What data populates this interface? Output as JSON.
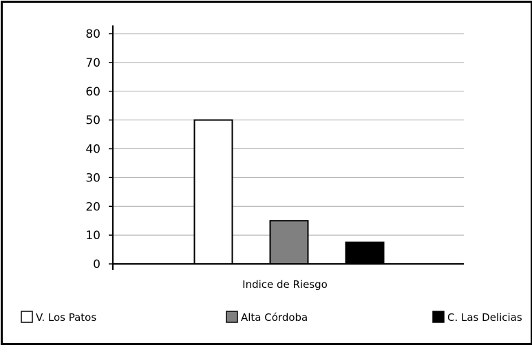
{
  "chart_data": {
    "type": "bar",
    "title": "",
    "xlabel": "Indice de Riesgo",
    "ylabel": "",
    "categories": [
      "Indice de Riesgo"
    ],
    "ylim": [
      0,
      80
    ],
    "yticks": [
      0,
      10,
      20,
      30,
      40,
      50,
      60,
      70,
      80
    ],
    "grid": true,
    "legend_position": "bottom",
    "series": [
      {
        "name": "V. Los Patos",
        "values": [
          50
        ],
        "color": "#ffffff"
      },
      {
        "name": "Alta Córdoba",
        "values": [
          15
        ],
        "color": "#808080"
      },
      {
        "name": "C. Las Delicias",
        "values": [
          7.5
        ],
        "color": "#000000"
      }
    ]
  }
}
